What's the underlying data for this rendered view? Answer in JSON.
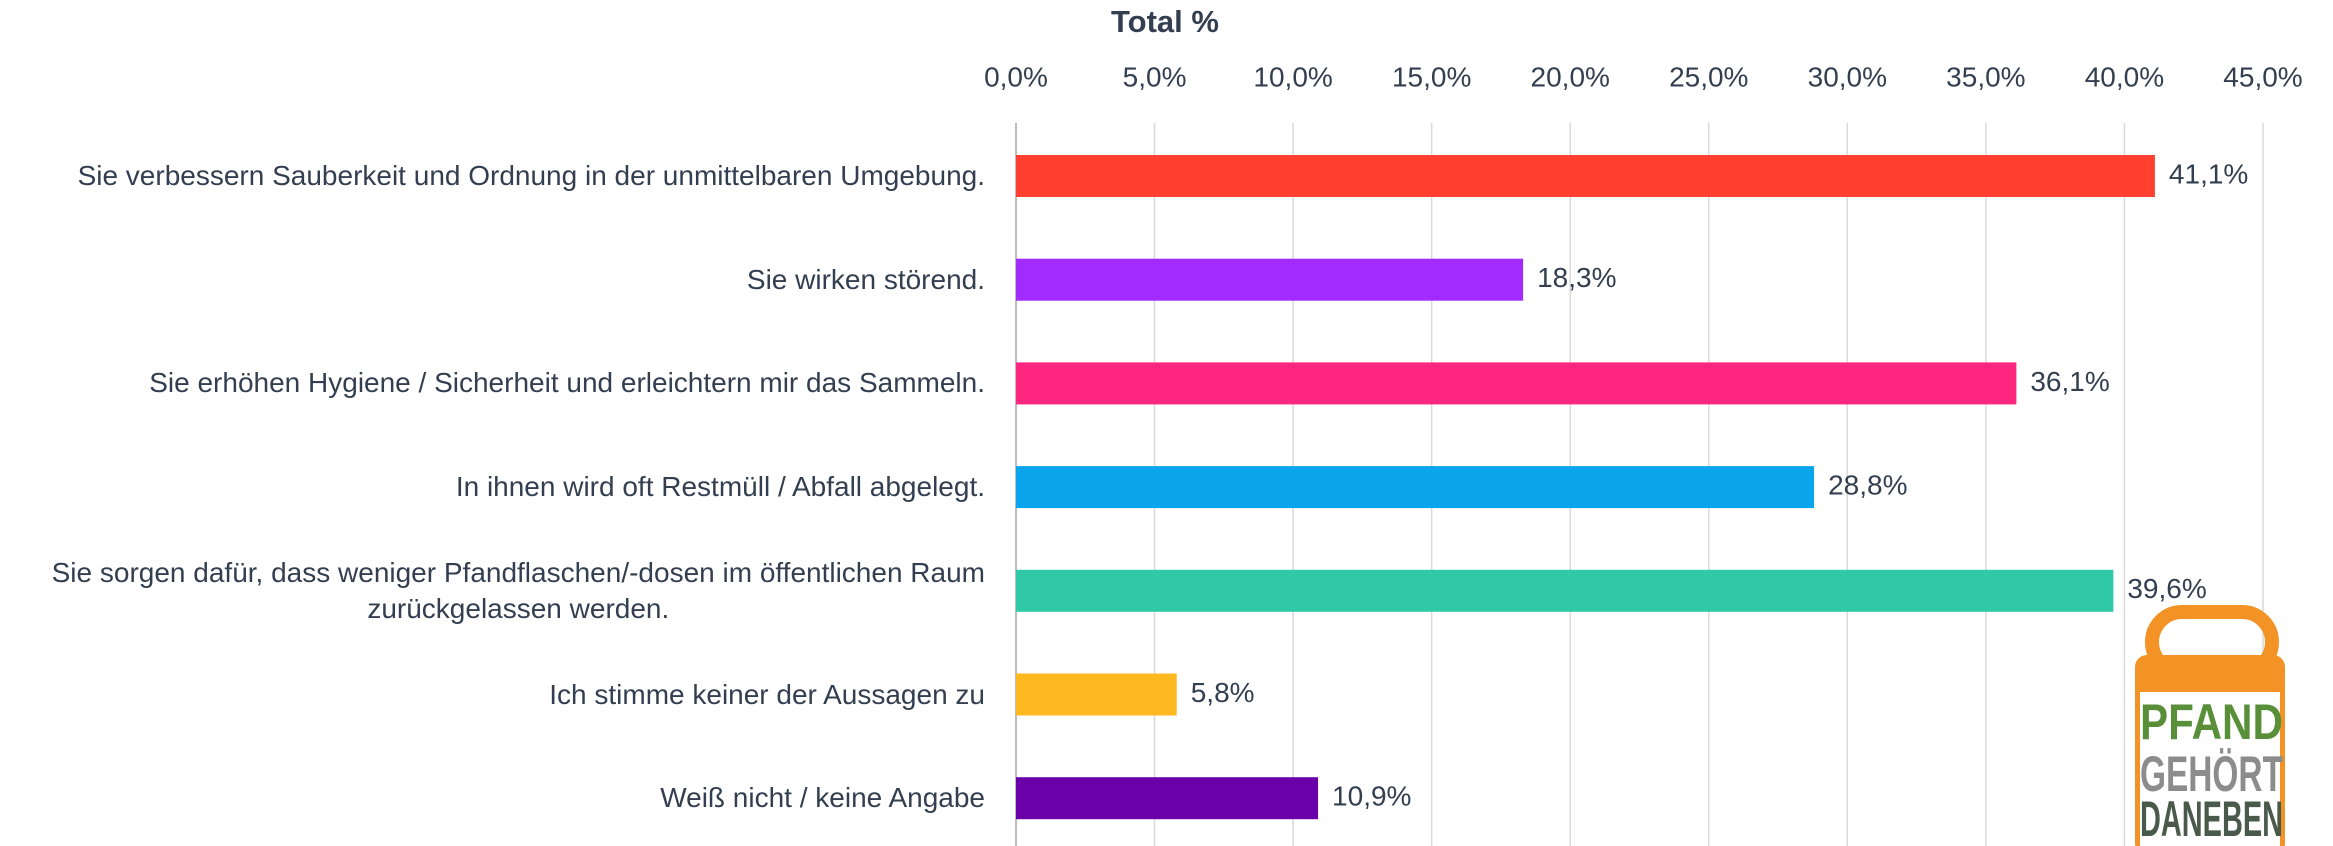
{
  "chart_data": {
    "type": "hbar",
    "title": "Total %",
    "categories": [
      "Sie verbessern Sauberkeit und Ordnung in der unmittelbaren Umgebung.",
      "Sie wirken störend.",
      "Sie erhöhen Hygiene / Sicherheit und erleichtern mir das Sammeln.",
      "In ihnen wird oft Restmüll / Abfall abgelegt.",
      "Sie sorgen dafür, dass weniger Pfandflaschen/-dosen im öffentlichen Raum\nzurückgelassen werden.",
      "Ich stimme keiner der Aussagen zu",
      "Weiß nicht / keine Angabe"
    ],
    "values": [
      41.1,
      18.3,
      36.1,
      28.8,
      39.6,
      5.8,
      10.9
    ],
    "value_labels": [
      "41,1%",
      "18,3%",
      "36,1%",
      "28,8%",
      "39,6%",
      "5,8%",
      "10,9%"
    ],
    "colors": [
      "#FF4030",
      "#A22BFF",
      "#FF2680",
      "#0AA5EC",
      "#2FC9A8",
      "#FFB81F",
      "#6A00A8"
    ],
    "xlim": [
      0,
      45
    ],
    "xticks": [
      {
        "value": 0,
        "label": "0,0%"
      },
      {
        "value": 5,
        "label": "5,0%"
      },
      {
        "value": 10,
        "label": "10,0%"
      },
      {
        "value": 15,
        "label": "15,0%"
      },
      {
        "value": 20,
        "label": "20,0%"
      },
      {
        "value": 25,
        "label": "25,0%"
      },
      {
        "value": 30,
        "label": "30,0%"
      },
      {
        "value": 35,
        "label": "35,0%"
      },
      {
        "value": 40,
        "label": "40,0%"
      },
      {
        "value": 45,
        "label": "45,0%"
      }
    ],
    "grid": true,
    "logo": [
      "PFAND",
      "GEHÖRT",
      "DANEBEN"
    ]
  }
}
